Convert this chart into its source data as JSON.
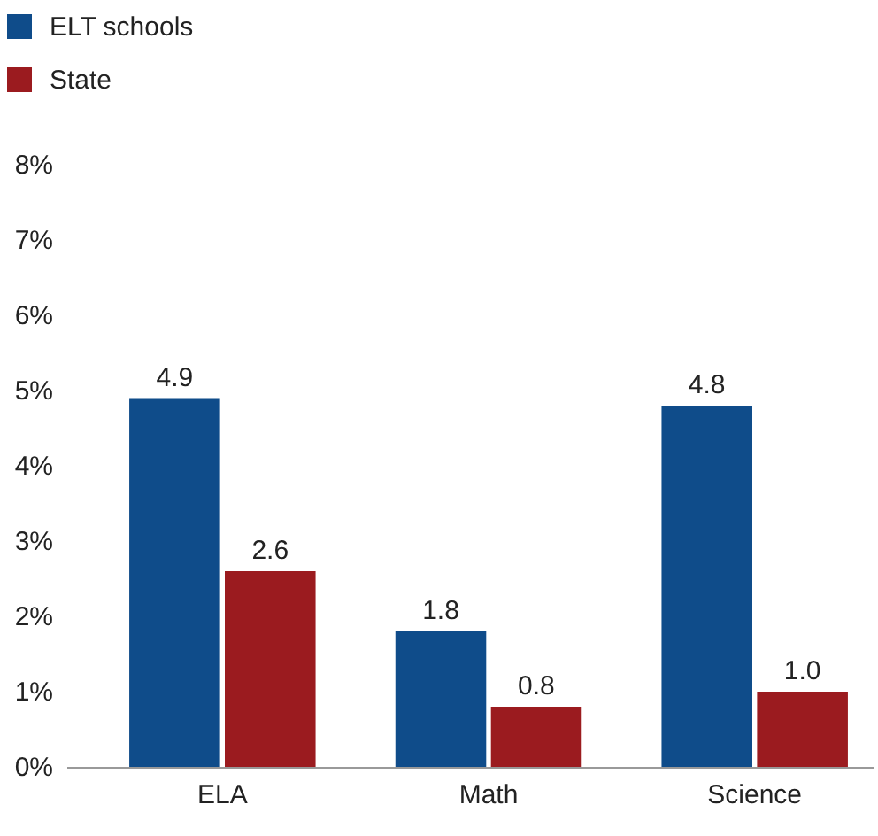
{
  "chart_data": {
    "type": "bar",
    "categories": [
      "ELA",
      "Math",
      "Science"
    ],
    "series": [
      {
        "name": "ELT schools",
        "color": "#0f4c8a",
        "values": [
          4.9,
          1.8,
          4.8
        ],
        "value_labels": [
          "4.9",
          "1.8",
          "4.8"
        ]
      },
      {
        "name": "State",
        "color": "#9b1b1f",
        "values": [
          2.6,
          0.8,
          1.0
        ],
        "value_labels": [
          "2.6",
          "0.8",
          "1.0"
        ]
      }
    ],
    "ylim": [
      0,
      8
    ],
    "yticks": [
      {
        "value": 0,
        "label": "0%"
      },
      {
        "value": 1,
        "label": "1%"
      },
      {
        "value": 2,
        "label": "2%"
      },
      {
        "value": 3,
        "label": "3%"
      },
      {
        "value": 4,
        "label": "4%"
      },
      {
        "value": 5,
        "label": "5%"
      },
      {
        "value": 6,
        "label": "6%"
      },
      {
        "value": 7,
        "label": "7%"
      },
      {
        "value": 8,
        "label": "8%"
      }
    ],
    "legend": "top left",
    "grid": false
  }
}
